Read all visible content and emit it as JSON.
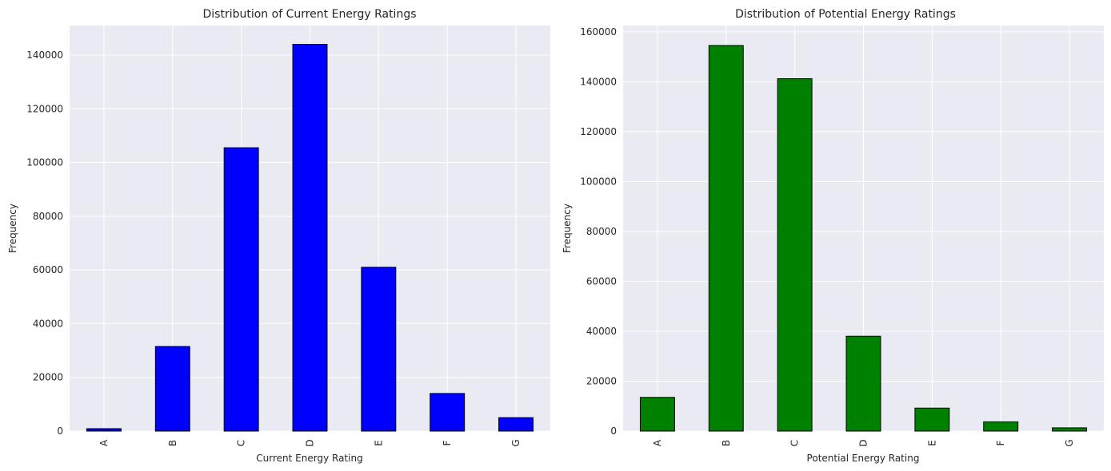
{
  "chart_data": [
    {
      "type": "bar",
      "title": "Distribution of Current Energy Ratings",
      "xlabel": "Current Energy Rating",
      "ylabel": "Frequency",
      "categories": [
        "A",
        "B",
        "C",
        "D",
        "E",
        "F",
        "G"
      ],
      "values": [
        900,
        31500,
        105500,
        144000,
        61000,
        14000,
        5000
      ],
      "ylim": [
        0,
        151000
      ],
      "yticks": [
        0,
        20000,
        40000,
        60000,
        80000,
        100000,
        120000,
        140000
      ],
      "bar_color": "#0000ff",
      "edge_color": "#000000",
      "background": "#eaeaf2",
      "grid": true
    },
    {
      "type": "bar",
      "title": "Distribution of Potential Energy Ratings",
      "xlabel": "Potential Energy Rating",
      "ylabel": "Frequency",
      "categories": [
        "A",
        "B",
        "C",
        "D",
        "E",
        "F",
        "G"
      ],
      "values": [
        13500,
        154500,
        141200,
        38000,
        9200,
        3700,
        1300
      ],
      "ylim": [
        0,
        162500
      ],
      "yticks": [
        0,
        20000,
        40000,
        60000,
        80000,
        100000,
        120000,
        140000,
        160000
      ],
      "bar_color": "#008000",
      "edge_color": "#000000",
      "background": "#eaeaf2",
      "grid": true
    }
  ]
}
